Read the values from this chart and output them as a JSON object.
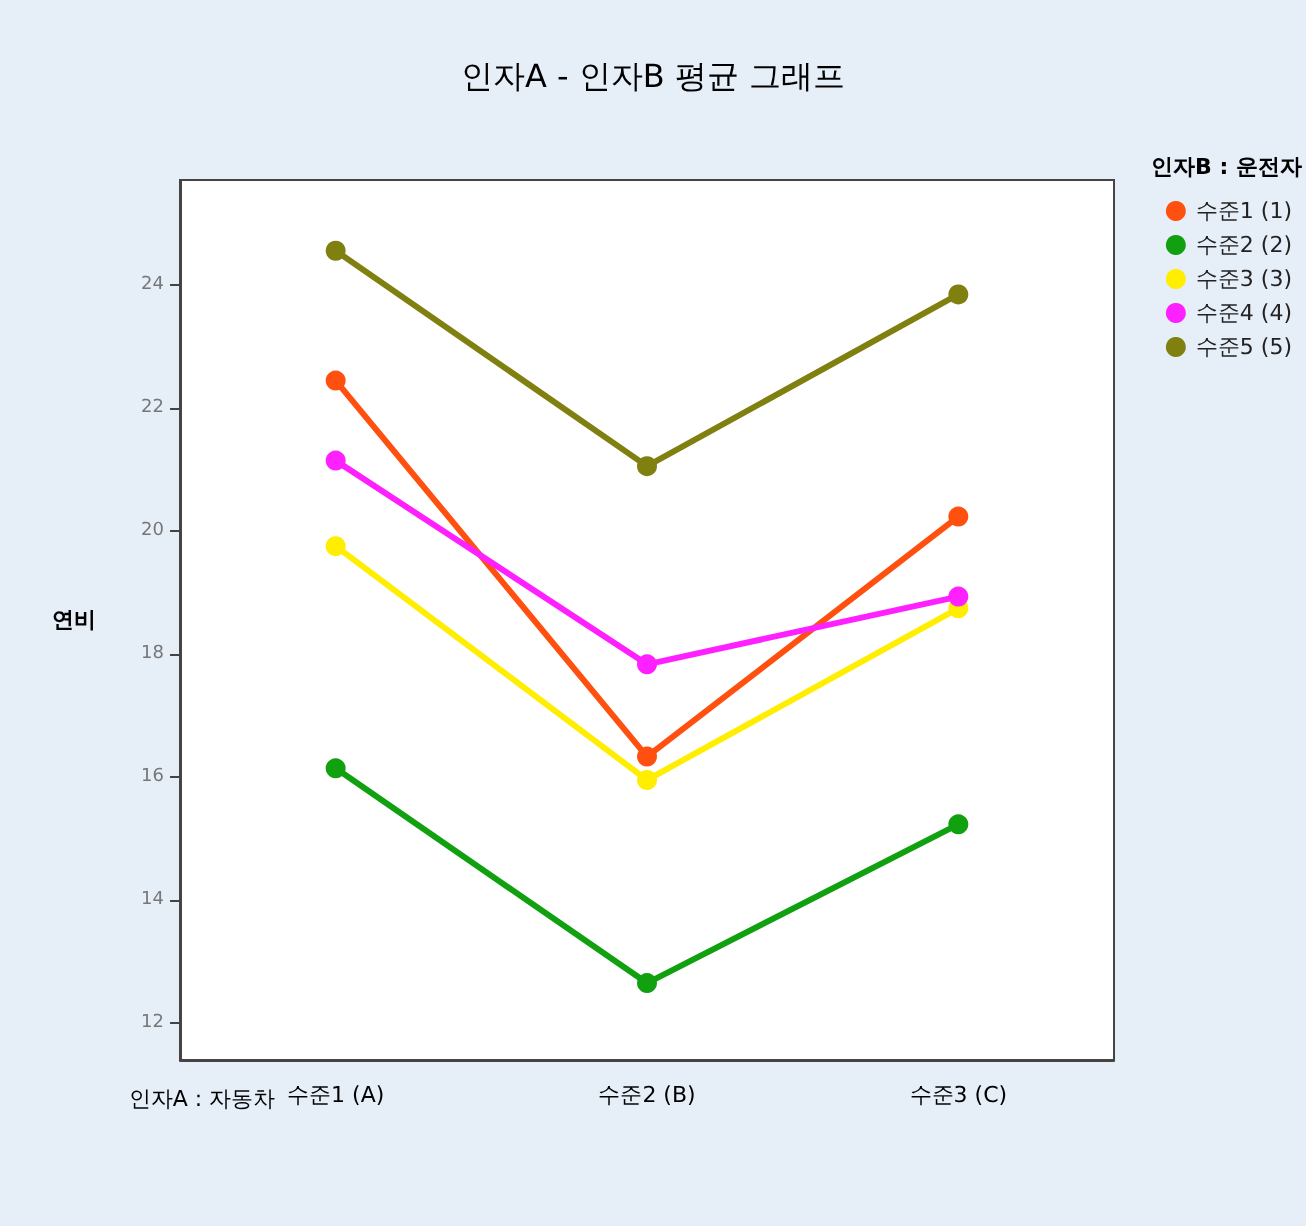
{
  "chart_data": {
    "type": "line",
    "title": "인자A - 인자B 평균 그래프",
    "xlabel": "인자A : 자동차",
    "ylabel": "연비",
    "legend_title": "인자B : 운전자",
    "categories": [
      "수준1 (A)",
      "수준2 (B)",
      "수준3 (C)"
    ],
    "series": [
      {
        "name": "수준1 (1)",
        "color": "#ff5010",
        "values": [
          22.44,
          16.33,
          20.23
        ]
      },
      {
        "name": "수준2 (2)",
        "color": "#10a010",
        "values": [
          16.14,
          12.65,
          15.23
        ]
      },
      {
        "name": "수준3 (3)",
        "color": "#ffee00",
        "values": [
          19.75,
          15.95,
          18.74
        ]
      },
      {
        "name": "수준4 (4)",
        "color": "#ff20ff",
        "values": [
          21.14,
          17.83,
          18.93
        ]
      },
      {
        "name": "수준5 (5)",
        "color": "#808010",
        "values": [
          24.55,
          21.05,
          23.84
        ]
      }
    ],
    "ylim": [
      11.4,
      25.7
    ],
    "yticks": [
      12,
      14,
      16,
      18,
      20,
      22,
      24
    ],
    "grid": false,
    "legend": "top right",
    "marker": "circle",
    "line_style": "solid"
  }
}
